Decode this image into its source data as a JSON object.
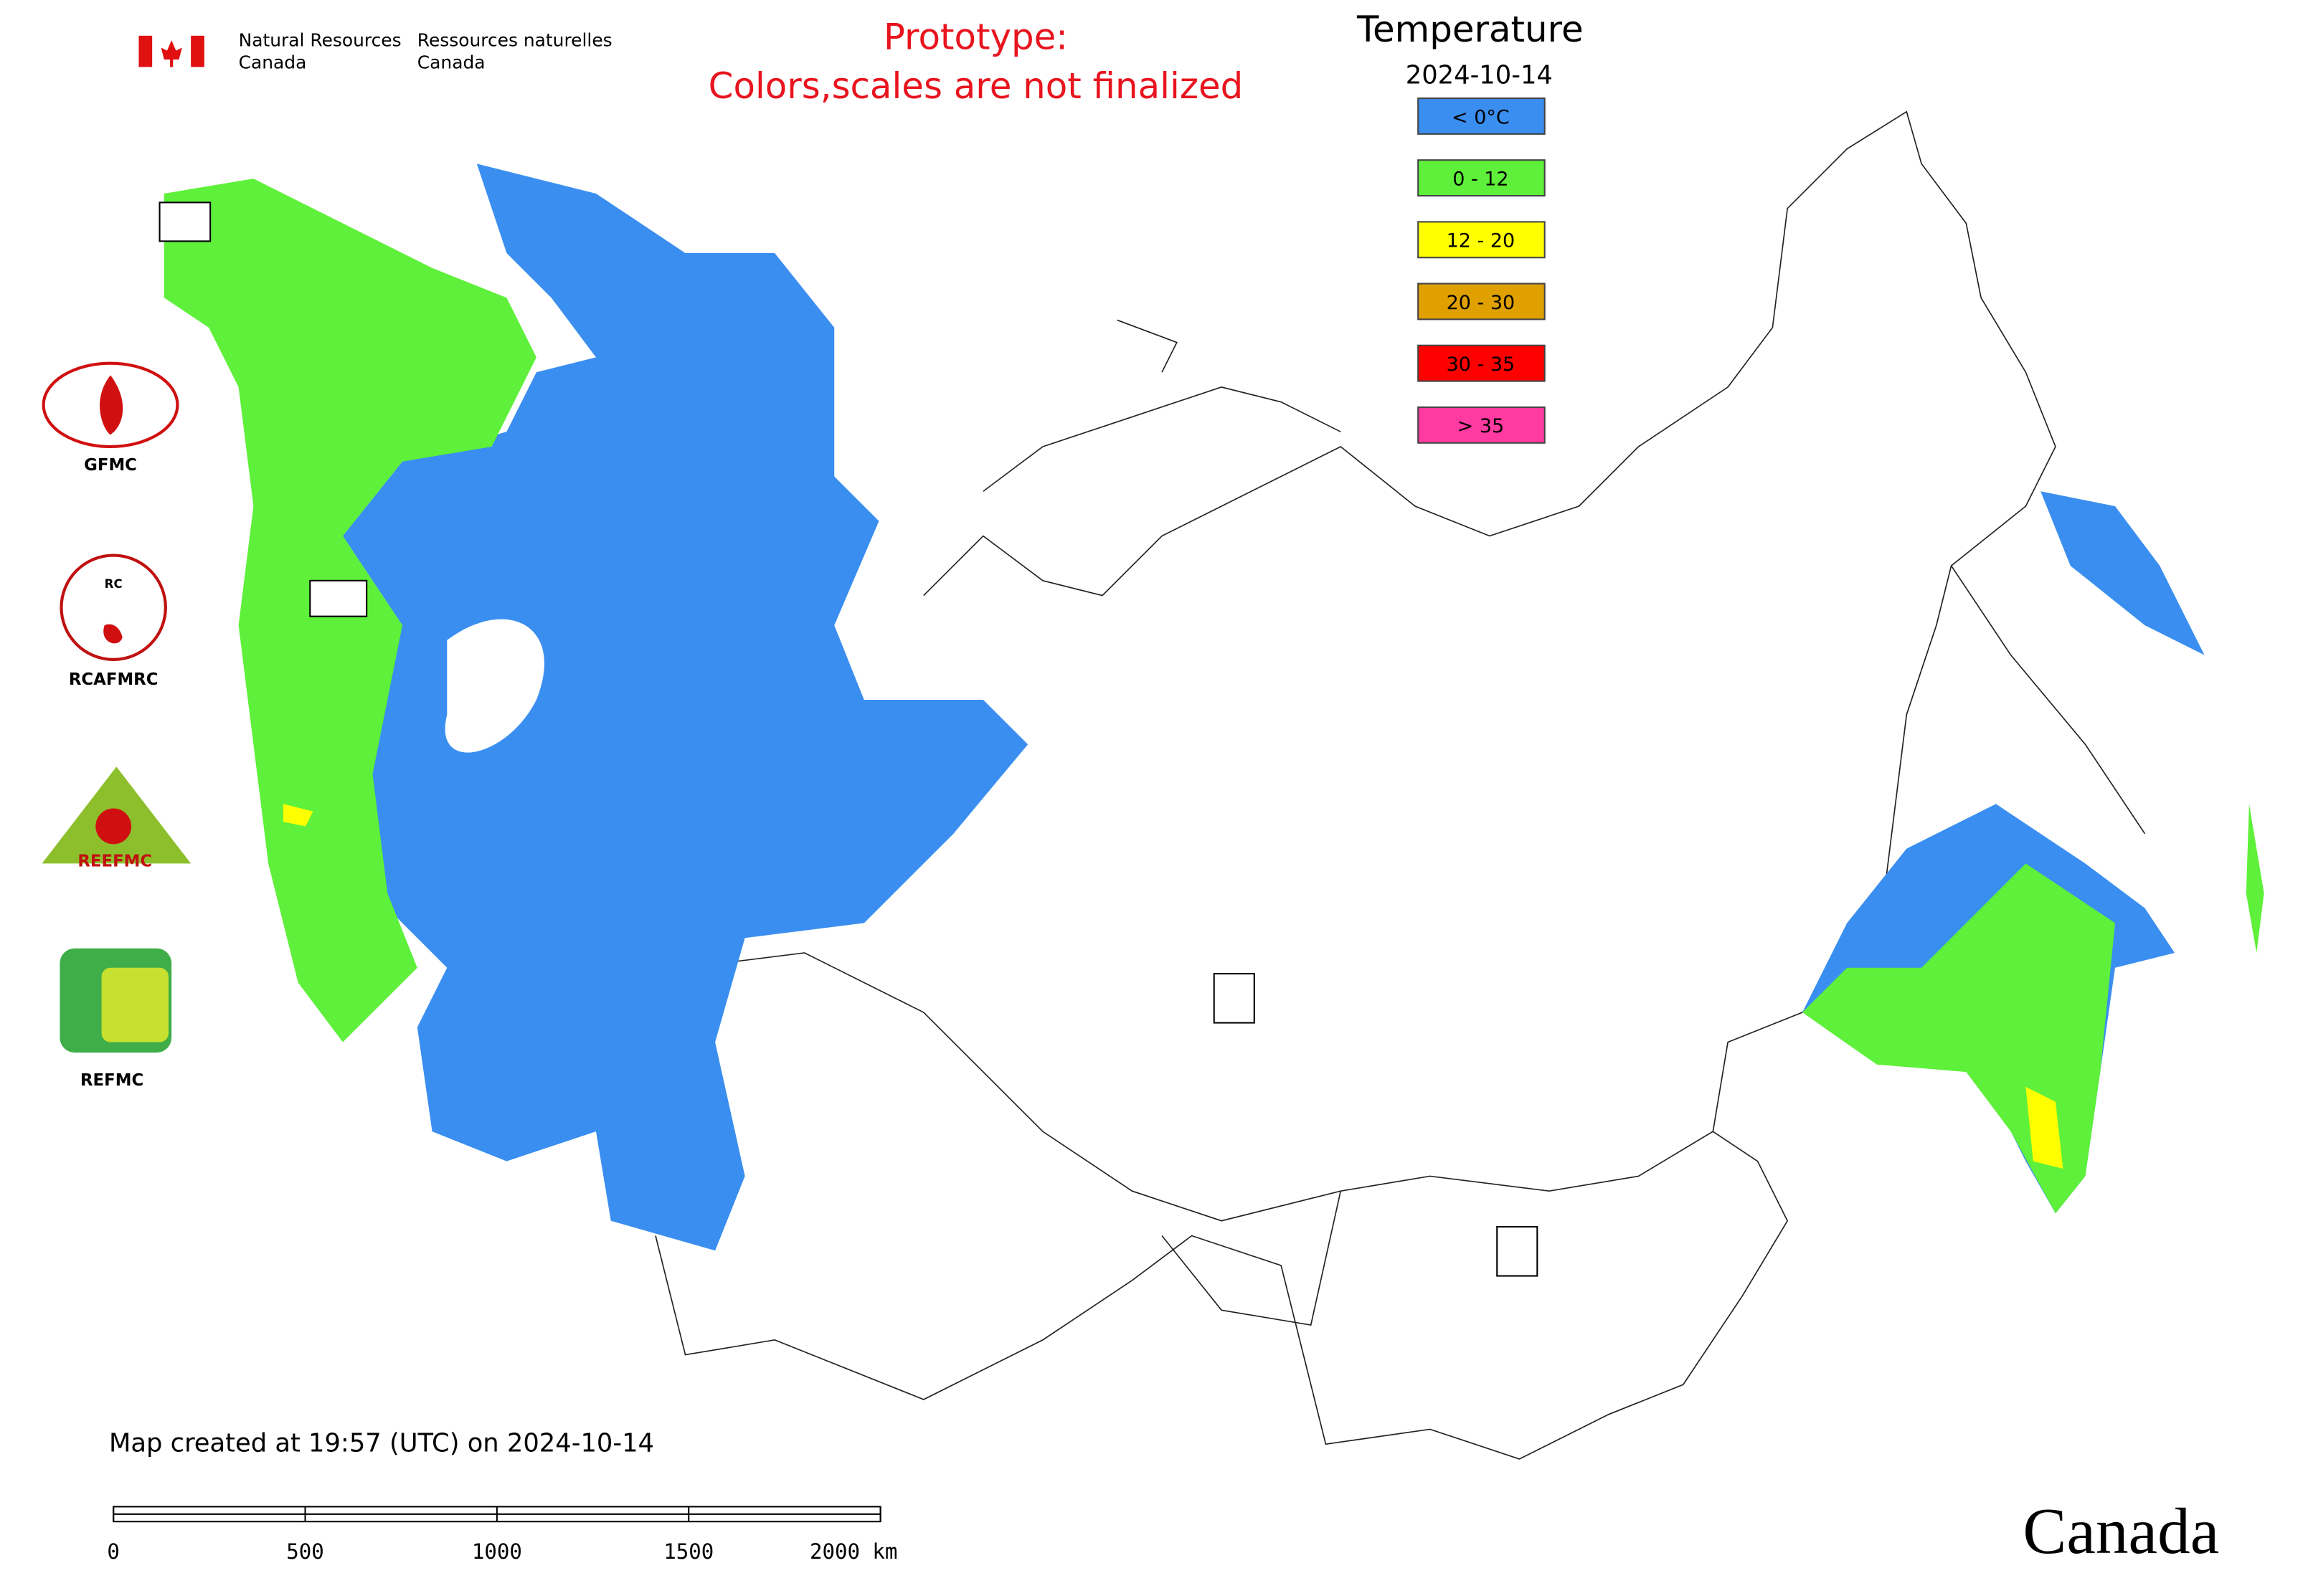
{
  "header": {
    "agency_en": "Natural Resources",
    "country_en": "Canada",
    "agency_fr": "Ressources naturelles",
    "country_fr": "Canada"
  },
  "notice": {
    "line1": "Prototype:",
    "line2": "Colors,scales are not finalized"
  },
  "legend": {
    "title": "Temperature",
    "date": "2024-10-14",
    "items": [
      {
        "label": "< 0°C",
        "color": "#3a8ef0"
      },
      {
        "label": "0 - 12",
        "color": "#5ef03a"
      },
      {
        "label": "12 - 20",
        "color": "#ffff00"
      },
      {
        "label": "20 - 30",
        "color": "#e0a000"
      },
      {
        "label": "30 - 35",
        "color": "#ff0000"
      },
      {
        "label": "> 35",
        "color": "#ff3aa0"
      }
    ]
  },
  "logos": [
    "GFMC",
    "RCAFMRC",
    "REEFMC",
    "REFMC"
  ],
  "footer": {
    "created": "Map created at 19:57 (UTC) on 2024-10-14",
    "scale": [
      "0",
      "500",
      "1000",
      "1500",
      "2000 km"
    ],
    "wordmark": "Canada"
  }
}
